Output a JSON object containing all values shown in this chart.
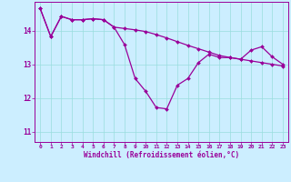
{
  "xlabel": "Windchill (Refroidissement éolien,°C)",
  "background_color": "#cceeff",
  "grid_color": "#99dddd",
  "line_color": "#990099",
  "marker": "D",
  "markersize": 2.0,
  "linewidth": 0.9,
  "xlim": [
    -0.5,
    23.5
  ],
  "ylim": [
    10.7,
    14.85
  ],
  "yticks": [
    11,
    12,
    13,
    14
  ],
  "xticks": [
    0,
    1,
    2,
    3,
    4,
    5,
    6,
    7,
    8,
    9,
    10,
    11,
    12,
    13,
    14,
    15,
    16,
    17,
    18,
    19,
    20,
    21,
    22,
    23
  ],
  "series1_x": [
    0,
    1,
    2,
    3,
    4,
    5,
    6,
    7,
    8,
    9,
    10,
    11,
    12,
    13,
    14,
    15,
    16,
    17,
    18,
    19,
    20,
    21,
    22,
    23
  ],
  "series1_y": [
    14.65,
    13.82,
    14.42,
    14.32,
    14.32,
    14.35,
    14.32,
    14.1,
    13.58,
    12.58,
    12.2,
    11.72,
    11.68,
    12.38,
    12.58,
    13.05,
    13.3,
    13.2,
    13.2,
    13.15,
    13.42,
    13.52,
    13.22,
    13.0
  ],
  "series2_x": [
    0,
    1,
    2,
    3,
    4,
    5,
    6,
    7,
    8,
    9,
    10,
    11,
    12,
    13,
    14,
    15,
    16,
    17,
    18,
    19,
    20,
    21,
    22,
    23
  ],
  "series2_y": [
    14.65,
    13.82,
    14.42,
    14.32,
    14.32,
    14.35,
    14.32,
    14.1,
    14.06,
    14.02,
    13.97,
    13.88,
    13.78,
    13.67,
    13.56,
    13.46,
    13.36,
    13.26,
    13.2,
    13.15,
    13.1,
    13.05,
    13.0,
    12.95
  ]
}
